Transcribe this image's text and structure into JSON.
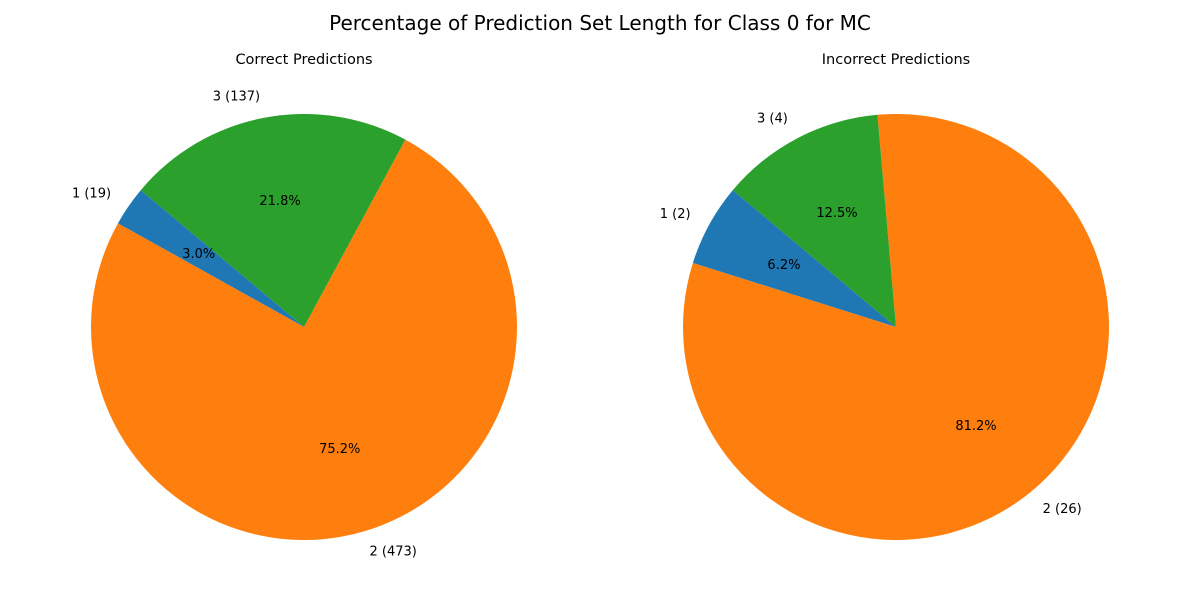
{
  "figure": {
    "title": "Percentage of Prediction Set Length for Class 0 for MC"
  },
  "chart_data": [
    {
      "type": "pie",
      "title": "Correct Predictions",
      "start_angle_deg": 140,
      "direction": "counterclockwise",
      "slices": [
        {
          "category": "1",
          "count": 19,
          "label": "1 (19)",
          "percent": 3.0,
          "percent_label": "3.0%",
          "color": "#1f77b4"
        },
        {
          "category": "2",
          "count": 473,
          "label": "2 (473)",
          "percent": 75.2,
          "percent_label": "75.2%",
          "color": "#ff7f0e"
        },
        {
          "category": "3",
          "count": 137,
          "label": "3 (137)",
          "percent": 21.8,
          "percent_label": "21.8%",
          "color": "#2ca02c"
        }
      ]
    },
    {
      "type": "pie",
      "title": "Incorrect Predictions",
      "start_angle_deg": 140,
      "direction": "counterclockwise",
      "slices": [
        {
          "category": "1",
          "count": 2,
          "label": "1 (2)",
          "percent": 6.2,
          "percent_label": "6.2%",
          "color": "#1f77b4"
        },
        {
          "category": "2",
          "count": 26,
          "label": "2 (26)",
          "percent": 81.2,
          "percent_label": "81.2%",
          "color": "#ff7f0e"
        },
        {
          "category": "3",
          "count": 4,
          "label": "3 (4)",
          "percent": 12.5,
          "percent_label": "12.5%",
          "color": "#2ca02c"
        }
      ]
    }
  ]
}
